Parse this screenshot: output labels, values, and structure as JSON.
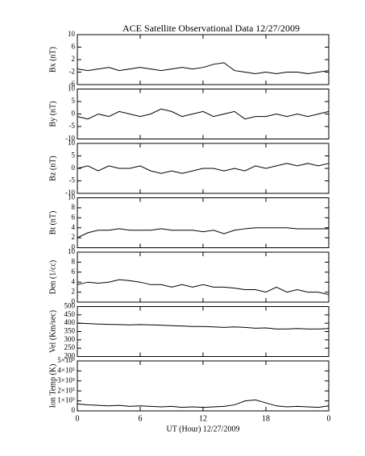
{
  "chart_data": [
    {
      "type": "line",
      "title": "ACE Satellite Observational Data   12/27/2009",
      "ylabel": "Bx (nT)",
      "x": [
        0,
        1,
        2,
        3,
        4,
        5,
        6,
        7,
        8,
        9,
        10,
        11,
        12,
        13,
        14,
        15,
        16,
        17,
        18,
        19,
        20,
        21,
        22,
        23,
        24
      ],
      "series": [
        {
          "color": "#000000",
          "values": [
            -1,
            -1.5,
            -1,
            -0.5,
            -1.5,
            -1,
            -0.5,
            -1,
            -1.5,
            -1,
            -0.5,
            -1,
            -0.5,
            0.5,
            1,
            -1.5,
            -2,
            -2.5,
            -2,
            -2.5,
            -2,
            -2,
            -2.5,
            -2,
            -1.5
          ]
        }
      ],
      "xlim": [
        0,
        24
      ],
      "ylim": [
        -6,
        10
      ],
      "yticks": [
        -6,
        -2,
        2,
        6,
        10
      ]
    },
    {
      "type": "line",
      "ylabel": "By (nT)",
      "x": [
        0,
        1,
        2,
        3,
        4,
        5,
        6,
        7,
        8,
        9,
        10,
        11,
        12,
        13,
        14,
        15,
        16,
        17,
        18,
        19,
        20,
        21,
        22,
        23,
        24
      ],
      "series": [
        {
          "color": "#000000",
          "values": [
            -1,
            -2,
            0,
            -1,
            1,
            0,
            -1,
            0,
            2,
            1,
            -1,
            0,
            1,
            -1,
            0,
            1,
            -2,
            -1,
            -1,
            0,
            -1,
            0,
            -1,
            0,
            1
          ]
        }
      ],
      "xlim": [
        0,
        24
      ],
      "ylim": [
        -10,
        10
      ],
      "yticks": [
        -10,
        -5,
        0,
        5,
        10
      ]
    },
    {
      "type": "line",
      "ylabel": "Bz (nT)",
      "x": [
        0,
        1,
        2,
        3,
        4,
        5,
        6,
        7,
        8,
        9,
        10,
        11,
        12,
        13,
        14,
        15,
        16,
        17,
        18,
        19,
        20,
        21,
        22,
        23,
        24
      ],
      "series": [
        {
          "color": "#000000",
          "values": [
            0,
            1,
            -1,
            1,
            0,
            0,
            1,
            -1,
            -2,
            -1,
            -2,
            -1,
            0,
            0,
            -1,
            0,
            -1,
            1,
            0,
            1,
            2,
            1,
            2,
            1,
            2
          ]
        }
      ],
      "xlim": [
        0,
        24
      ],
      "ylim": [
        -10,
        10
      ],
      "yticks": [
        -10,
        -5,
        0,
        5,
        10
      ]
    },
    {
      "type": "line",
      "ylabel": "Bt (nT)",
      "x": [
        0,
        1,
        2,
        3,
        4,
        5,
        6,
        7,
        8,
        9,
        10,
        11,
        12,
        13,
        14,
        15,
        16,
        17,
        18,
        19,
        20,
        21,
        22,
        23,
        24
      ],
      "series": [
        {
          "color": "#000000",
          "values": [
            2,
            3,
            3.5,
            3.5,
            3.8,
            3.5,
            3.5,
            3.5,
            3.8,
            3.5,
            3.5,
            3.5,
            3.2,
            3.5,
            2.8,
            3.5,
            3.8,
            4,
            4,
            4,
            4,
            3.8,
            3.8,
            3.8,
            3.8
          ]
        }
      ],
      "xlim": [
        0,
        24
      ],
      "ylim": [
        0,
        10
      ],
      "yticks": [
        0,
        2,
        4,
        6,
        8,
        10
      ]
    },
    {
      "type": "line",
      "ylabel": "Den (1/cc)",
      "x": [
        0,
        1,
        2,
        3,
        4,
        5,
        6,
        7,
        8,
        9,
        10,
        11,
        12,
        13,
        14,
        15,
        16,
        17,
        18,
        19,
        20,
        21,
        22,
        23,
        24
      ],
      "series": [
        {
          "color": "#000000",
          "values": [
            3.5,
            4,
            3.8,
            4,
            4.5,
            4.3,
            4,
            3.5,
            3.5,
            3,
            3.5,
            3,
            3.5,
            3,
            3,
            2.8,
            2.5,
            2.5,
            2,
            3,
            2,
            2.5,
            2,
            2,
            1.5
          ]
        }
      ],
      "xlim": [
        0,
        24
      ],
      "ylim": [
        0,
        10
      ],
      "yticks": [
        0,
        2,
        4,
        6,
        8,
        10
      ]
    },
    {
      "type": "line",
      "ylabel": "Vel (Km/sec)",
      "x": [
        0,
        1,
        2,
        3,
        4,
        5,
        6,
        7,
        8,
        9,
        10,
        11,
        12,
        13,
        14,
        15,
        16,
        17,
        18,
        19,
        20,
        21,
        22,
        23,
        24
      ],
      "series": [
        {
          "color": "#000000",
          "values": [
            400,
            398,
            395,
            393,
            392,
            390,
            392,
            390,
            388,
            385,
            383,
            380,
            380,
            378,
            375,
            378,
            375,
            370,
            372,
            365,
            365,
            368,
            365,
            365,
            368
          ]
        }
      ],
      "xlim": [
        0,
        24
      ],
      "ylim": [
        200,
        500
      ],
      "yticks": [
        200,
        250,
        300,
        350,
        400,
        450,
        500
      ]
    },
    {
      "type": "line",
      "ylabel": "Ion Temp (K)",
      "xlabel": "UT (Hour)  12/27/2009",
      "x": [
        0,
        1,
        2,
        3,
        4,
        5,
        6,
        7,
        8,
        9,
        10,
        11,
        12,
        13,
        14,
        15,
        16,
        17,
        18,
        19,
        20,
        21,
        22,
        23,
        24
      ],
      "series": [
        {
          "color": "#000000",
          "values": [
            70000,
            60000,
            55000,
            50000,
            55000,
            45000,
            50000,
            45000,
            40000,
            45000,
            35000,
            40000,
            35000,
            40000,
            45000,
            60000,
            100000,
            110000,
            80000,
            50000,
            40000,
            45000,
            40000,
            35000,
            50000
          ]
        }
      ],
      "xlim": [
        0,
        24
      ],
      "ylim": [
        0,
        500000
      ],
      "yticks": [
        0,
        {
          "value": 100000,
          "label": "1×10⁵"
        },
        {
          "value": 200000,
          "label": "2×10⁵"
        },
        {
          "value": 300000,
          "label": "3×10⁵"
        },
        {
          "value": 400000,
          "label": "4×10⁵"
        },
        {
          "value": 500000,
          "label": "5×10⁵"
        }
      ],
      "xticks": [
        0,
        6,
        12,
        18,
        {
          "value": 24,
          "label": "0"
        }
      ]
    }
  ]
}
